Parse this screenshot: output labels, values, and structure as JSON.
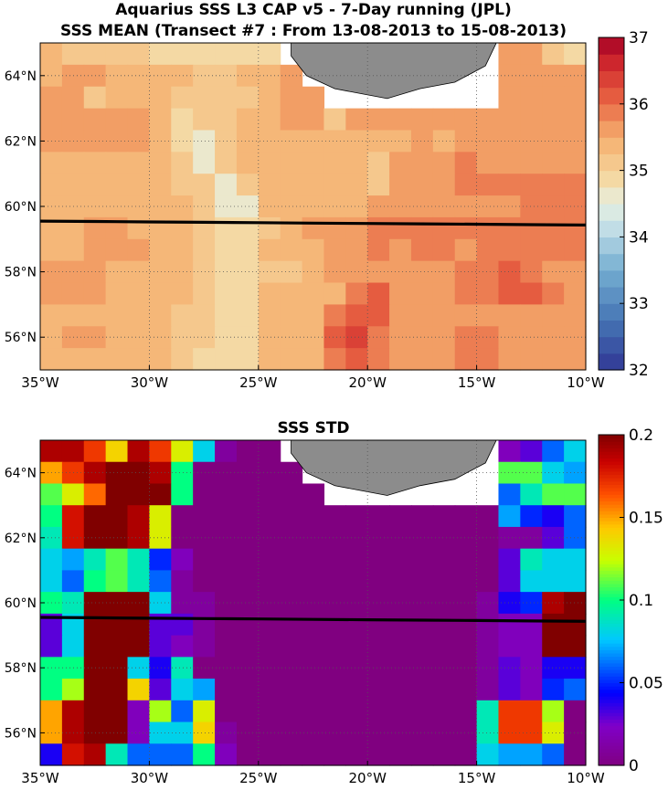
{
  "chart_data": [
    {
      "type": "heatmap",
      "title": "Aquarius SSS L3 CAP v5 - 7-Day running (JPL)",
      "subtitle": "SSS MEAN (Transect #7 : From 13-08-2013 to 15-08-2013)",
      "xlim": [
        -35,
        -10
      ],
      "ylim": [
        55,
        65
      ],
      "xticks": [
        "35°W",
        "30°W",
        "25°W",
        "20°W",
        "15°W",
        "10°W"
      ],
      "yticks": [
        "56°N",
        "58°N",
        "60°N",
        "62°N",
        "64°N"
      ],
      "colorbar": {
        "min": 32,
        "max": 37,
        "ticks": [
          "32",
          "33",
          "34",
          "35",
          "36",
          "37"
        ]
      },
      "cell_size_deg": 1,
      "grid": "dotted",
      "transect_lat": 59.5,
      "values": [
        [
          35.3,
          35.1,
          35.1,
          35.1,
          35.1,
          34.9,
          34.9,
          34.9,
          34.9,
          34.9,
          34.9,
          null,
          null,
          null,
          null,
          null,
          null,
          null,
          null,
          null,
          null,
          35.5,
          35.5,
          35.1,
          34.9
        ],
        [
          35.3,
          35.5,
          35.5,
          35.3,
          35.3,
          35.3,
          35.3,
          35.1,
          35.1,
          35.3,
          35.3,
          35.5,
          null,
          null,
          null,
          null,
          null,
          null,
          null,
          null,
          null,
          35.5,
          35.5,
          35.5,
          35.5
        ],
        [
          35.5,
          35.5,
          35.1,
          35.3,
          35.3,
          35.3,
          35.1,
          35.1,
          35.1,
          35.1,
          35.3,
          35.5,
          35.5,
          null,
          null,
          null,
          null,
          null,
          null,
          null,
          null,
          35.5,
          35.5,
          35.5,
          35.5
        ],
        [
          35.5,
          35.5,
          35.5,
          35.5,
          35.5,
          35.3,
          34.9,
          35.1,
          35.1,
          35.3,
          35.3,
          35.5,
          35.5,
          35.1,
          35.5,
          35.5,
          35.5,
          35.7,
          35.5,
          35.5,
          35.5,
          35.5,
          35.5,
          35.5,
          35.5
        ],
        [
          35.5,
          35.5,
          35.5,
          35.5,
          35.5,
          35.3,
          34.9,
          34.7,
          35.1,
          35.3,
          35.3,
          35.3,
          35.3,
          35.3,
          35.3,
          35.3,
          35.3,
          35.5,
          35.3,
          35.5,
          35.7,
          35.7,
          35.5,
          35.5,
          35.5
        ],
        [
          35.3,
          35.3,
          35.3,
          35.3,
          35.3,
          35.3,
          35.1,
          34.7,
          35.1,
          35.3,
          35.3,
          35.3,
          35.3,
          35.3,
          35.3,
          35.1,
          35.7,
          35.7,
          35.7,
          35.9,
          35.7,
          35.7,
          35.7,
          35.7,
          35.7
        ],
        [
          35.3,
          35.3,
          35.3,
          35.3,
          35.3,
          35.3,
          35.1,
          35.1,
          34.5,
          35.1,
          35.3,
          35.3,
          35.3,
          35.3,
          35.3,
          35.1,
          35.7,
          35.7,
          35.7,
          35.9,
          35.9,
          35.9,
          35.9,
          35.9,
          35.9
        ],
        [
          35.3,
          35.3,
          35.3,
          35.3,
          35.3,
          35.3,
          35.3,
          35.1,
          34.7,
          34.7,
          35.3,
          35.3,
          35.3,
          35.3,
          35.3,
          35.5,
          35.7,
          35.7,
          35.7,
          35.7,
          35.7,
          35.7,
          35.9,
          35.9,
          35.9
        ],
        [
          35.3,
          35.3,
          35.5,
          35.5,
          35.3,
          35.3,
          35.3,
          35.1,
          34.9,
          34.9,
          35.1,
          35.3,
          35.5,
          35.5,
          35.5,
          35.9,
          35.9,
          35.9,
          35.9,
          35.9,
          35.9,
          35.9,
          35.9,
          35.9,
          35.9
        ],
        [
          35.3,
          35.3,
          35.5,
          35.5,
          35.5,
          35.3,
          35.3,
          35.1,
          34.9,
          34.9,
          35.3,
          35.3,
          35.3,
          35.5,
          35.5,
          35.9,
          35.7,
          35.9,
          35.9,
          35.7,
          35.9,
          35.9,
          35.9,
          35.9,
          35.9
        ],
        [
          35.5,
          35.5,
          35.5,
          35.3,
          35.3,
          35.3,
          35.3,
          35.1,
          34.9,
          34.9,
          35.1,
          35.1,
          35.3,
          35.5,
          35.7,
          35.7,
          35.5,
          35.7,
          35.7,
          35.9,
          35.9,
          36.1,
          35.9,
          35.7,
          35.7
        ],
        [
          35.5,
          35.5,
          35.5,
          35.3,
          35.3,
          35.3,
          35.3,
          35.1,
          34.9,
          34.9,
          35.3,
          35.3,
          35.3,
          35.3,
          35.9,
          36.1,
          35.5,
          35.7,
          35.5,
          35.9,
          35.9,
          36.1,
          36.1,
          35.9,
          35.7
        ],
        [
          35.3,
          35.3,
          35.3,
          35.3,
          35.3,
          35.3,
          35.1,
          35.1,
          34.9,
          34.9,
          35.3,
          35.3,
          35.3,
          35.9,
          36.1,
          36.1,
          35.7,
          35.7,
          35.7,
          35.5,
          35.7,
          35.7,
          35.7,
          35.7,
          35.7
        ],
        [
          35.3,
          35.5,
          35.5,
          35.3,
          35.3,
          35.3,
          35.1,
          35.1,
          34.9,
          34.9,
          35.3,
          35.3,
          35.3,
          36.1,
          36.3,
          35.9,
          35.5,
          35.7,
          35.5,
          35.9,
          35.9,
          35.7,
          35.7,
          35.7,
          35.7
        ],
        [
          35.3,
          35.3,
          35.3,
          35.3,
          35.3,
          35.3,
          35.1,
          34.9,
          34.9,
          34.9,
          35.3,
          35.3,
          35.3,
          35.9,
          36.1,
          35.9,
          35.5,
          35.7,
          35.5,
          35.9,
          35.9,
          35.7,
          35.7,
          35.7,
          35.7
        ]
      ]
    },
    {
      "type": "heatmap",
      "title": "SSS STD",
      "xlim": [
        -35,
        -10
      ],
      "ylim": [
        55,
        65
      ],
      "xticks": [
        "35°W",
        "30°W",
        "25°W",
        "20°W",
        "15°W",
        "10°W"
      ],
      "yticks": [
        "56°N",
        "58°N",
        "60°N",
        "62°N",
        "64°N"
      ],
      "colorbar": {
        "min": 0,
        "max": 0.2,
        "ticks": [
          "0",
          "0.05",
          "0.1",
          "0.15",
          "0.2"
        ]
      },
      "cell_size_deg": 1,
      "grid": "dotted",
      "transect_lat": 59.5,
      "values": [
        [
          0.19,
          0.19,
          0.17,
          0.14,
          0.19,
          0.17,
          0.13,
          0.08,
          0.01,
          0.0,
          0.0,
          null,
          null,
          null,
          null,
          null,
          null,
          null,
          null,
          null,
          null,
          0.02,
          0.03,
          0.06,
          0.08
        ],
        [
          0.15,
          0.17,
          0.19,
          0.2,
          0.2,
          0.19,
          0.1,
          0.0,
          0.0,
          0.0,
          0.0,
          0.0,
          null,
          null,
          null,
          null,
          null,
          null,
          null,
          null,
          null,
          0.11,
          0.11,
          0.08,
          0.07
        ],
        [
          0.11,
          0.13,
          0.16,
          0.2,
          0.2,
          0.2,
          0.1,
          0.0,
          0.0,
          0.0,
          0.0,
          0.0,
          0.0,
          null,
          null,
          null,
          null,
          null,
          null,
          null,
          null,
          0.06,
          0.09,
          0.11,
          0.11
        ],
        [
          0.1,
          0.18,
          0.2,
          0.2,
          0.19,
          0.13,
          0.0,
          0.0,
          0.0,
          0.0,
          0.0,
          0.0,
          0.0,
          0.0,
          0.0,
          0.0,
          0.0,
          0.0,
          0.0,
          0.0,
          0.0,
          0.07,
          0.05,
          0.04,
          0.06
        ],
        [
          0.09,
          0.18,
          0.2,
          0.2,
          0.19,
          0.13,
          0.0,
          0.0,
          0.0,
          0.0,
          0.0,
          0.0,
          0.0,
          0.0,
          0.0,
          0.0,
          0.0,
          0.0,
          0.0,
          0.0,
          0.0,
          0.01,
          0.01,
          0.03,
          0.06
        ],
        [
          0.08,
          0.07,
          0.09,
          0.11,
          0.09,
          0.05,
          0.02,
          0.0,
          0.0,
          0.0,
          0.0,
          0.0,
          0.0,
          0.0,
          0.0,
          0.0,
          0.0,
          0.0,
          0.0,
          0.0,
          0.0,
          0.03,
          0.09,
          0.08,
          0.08
        ],
        [
          0.08,
          0.06,
          0.1,
          0.11,
          0.09,
          0.06,
          0.01,
          0.0,
          0.0,
          0.0,
          0.0,
          0.0,
          0.0,
          0.0,
          0.0,
          0.0,
          0.0,
          0.0,
          0.0,
          0.0,
          0.0,
          0.03,
          0.08,
          0.08,
          0.08
        ],
        [
          0.1,
          0.09,
          0.2,
          0.2,
          0.2,
          0.08,
          0.01,
          0.01,
          0.0,
          0.0,
          0.0,
          0.0,
          0.0,
          0.0,
          0.0,
          0.0,
          0.0,
          0.0,
          0.0,
          0.0,
          0.01,
          0.04,
          0.05,
          0.19,
          0.2
        ],
        [
          0.03,
          0.08,
          0.2,
          0.2,
          0.2,
          0.03,
          0.03,
          0.01,
          0.0,
          0.0,
          0.0,
          0.0,
          0.0,
          0.0,
          0.0,
          0.0,
          0.0,
          0.0,
          0.0,
          0.0,
          0.01,
          0.02,
          0.02,
          0.2,
          0.2
        ],
        [
          0.03,
          0.08,
          0.2,
          0.2,
          0.2,
          0.03,
          0.02,
          0.01,
          0.0,
          0.0,
          0.0,
          0.0,
          0.0,
          0.0,
          0.0,
          0.0,
          0.0,
          0.0,
          0.0,
          0.0,
          0.01,
          0.02,
          0.02,
          0.2,
          0.2
        ],
        [
          0.1,
          0.1,
          0.2,
          0.2,
          0.08,
          0.04,
          0.09,
          0.0,
          0.0,
          0.0,
          0.0,
          0.0,
          0.0,
          0.0,
          0.0,
          0.0,
          0.0,
          0.0,
          0.0,
          0.0,
          0.01,
          0.03,
          0.02,
          0.04,
          0.04
        ],
        [
          0.1,
          0.12,
          0.2,
          0.2,
          0.14,
          0.03,
          0.08,
          0.07,
          0.0,
          0.0,
          0.0,
          0.0,
          0.0,
          0.0,
          0.0,
          0.0,
          0.0,
          0.0,
          0.0,
          0.0,
          0.01,
          0.03,
          0.02,
          0.05,
          0.06
        ],
        [
          0.15,
          0.19,
          0.2,
          0.2,
          0.02,
          0.12,
          0.06,
          0.13,
          0.0,
          0.0,
          0.0,
          0.0,
          0.0,
          0.0,
          0.0,
          0.0,
          0.0,
          0.0,
          0.0,
          0.0,
          0.09,
          0.17,
          0.17,
          0.12,
          0.0
        ],
        [
          0.15,
          0.19,
          0.2,
          0.2,
          0.02,
          0.08,
          0.08,
          0.14,
          0.01,
          0.0,
          0.0,
          0.0,
          0.0,
          0.0,
          0.0,
          0.0,
          0.0,
          0.0,
          0.0,
          0.0,
          0.09,
          0.17,
          0.17,
          0.13,
          0.0
        ],
        [
          0.04,
          0.18,
          0.19,
          0.09,
          0.06,
          0.06,
          0.06,
          0.1,
          0.02,
          0.0,
          0.0,
          0.0,
          0.0,
          0.0,
          0.0,
          0.0,
          0.0,
          0.0,
          0.0,
          0.0,
          0.08,
          0.07,
          0.07,
          0.06,
          0.0
        ]
      ]
    }
  ]
}
